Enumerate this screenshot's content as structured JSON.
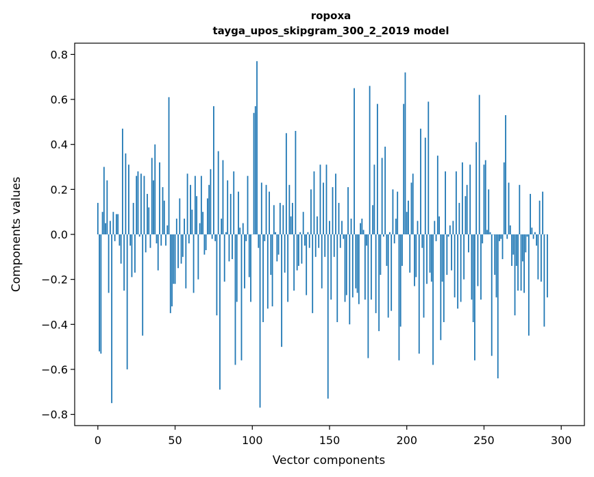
{
  "chart_data": {
    "type": "bar",
    "title": "ropoxa",
    "subtitle": "tayga_upos_skipgram_300_2_2019 model",
    "xlabel": "Vector components",
    "ylabel": "Components values",
    "xlim": [
      -15,
      315
    ],
    "ylim": [
      -0.85,
      0.85
    ],
    "xticks": [
      0,
      50,
      100,
      150,
      200,
      250,
      300
    ],
    "yticks": [
      -0.8,
      -0.6,
      -0.4,
      -0.2,
      0.0,
      0.2,
      0.4,
      0.6,
      0.8
    ],
    "ytick_labels": [
      "−0.8",
      "−0.6",
      "−0.4",
      "−0.2",
      "0.0",
      "0.2",
      "0.4",
      "0.6",
      "0.8"
    ],
    "grid": false,
    "color": "#1f77b4",
    "series": [
      {
        "values": [
          0.14,
          -0.52,
          -0.53,
          0.1,
          0.3,
          0.05,
          0.24,
          -0.26,
          0.06,
          -0.75,
          0.1,
          -0.03,
          0.09,
          0.09,
          -0.05,
          -0.13,
          0.47,
          -0.25,
          0.36,
          -0.6,
          0.31,
          -0.05,
          -0.19,
          0.14,
          -0.17,
          0.26,
          0.28,
          -0.01,
          0.27,
          -0.45,
          0.26,
          -0.08,
          0.18,
          0.12,
          -0.06,
          0.34,
          0.24,
          0.4,
          -0.04,
          -0.16,
          0.32,
          -0.05,
          0.21,
          0.15,
          -0.05,
          0.04,
          0.61,
          -0.35,
          -0.32,
          -0.22,
          -0.22,
          0.07,
          -0.15,
          0.16,
          -0.13,
          -0.1,
          0.07,
          -0.24,
          0.27,
          -0.04,
          0.22,
          0.11,
          -0.26,
          0.26,
          0.17,
          -0.2,
          0.05,
          0.26,
          0.1,
          -0.09,
          -0.07,
          0.16,
          0.22,
          0.29,
          -0.02,
          0.57,
          -0.03,
          -0.36,
          0.37,
          -0.69,
          0.07,
          0.33,
          -0.21,
          0.01,
          0.24,
          -0.12,
          0.18,
          -0.11,
          0.28,
          -0.58,
          -0.3,
          0.19,
          0.03,
          -0.56,
          0.05,
          -0.24,
          -0.03,
          0.26,
          -0.19,
          -0.3,
          0.0,
          0.54,
          0.57,
          0.77,
          -0.06,
          -0.77,
          0.23,
          -0.39,
          -0.03,
          0.22,
          -0.33,
          0.19,
          -0.18,
          -0.32,
          0.13,
          0.01,
          -0.12,
          -0.09,
          0.14,
          -0.5,
          0.13,
          -0.17,
          0.45,
          -0.3,
          0.22,
          0.08,
          0.14,
          -0.25,
          0.46,
          -0.16,
          -0.14,
          0.01,
          -0.13,
          0.1,
          -0.05,
          -0.27,
          0.01,
          -0.06,
          0.2,
          -0.35,
          0.28,
          -0.1,
          0.08,
          -0.06,
          0.31,
          -0.24,
          0.23,
          -0.1,
          0.31,
          -0.73,
          0.06,
          -0.29,
          0.21,
          -0.1,
          0.27,
          -0.39,
          0.14,
          -0.06,
          0.06,
          -0.02,
          -0.3,
          -0.27,
          0.21,
          -0.4,
          0.07,
          -0.28,
          0.65,
          -0.24,
          -0.26,
          -0.31,
          0.05,
          0.07,
          0.02,
          -0.29,
          -0.05,
          -0.55,
          0.66,
          -0.29,
          0.13,
          0.31,
          -0.35,
          0.58,
          -0.43,
          -0.18,
          0.34,
          -0.01,
          0.39,
          -0.14,
          -0.37,
          0.01,
          -0.34,
          0.2,
          -0.04,
          0.07,
          0.19,
          -0.56,
          -0.41,
          -0.14,
          0.58,
          0.72,
          0.1,
          0.15,
          -0.17,
          0.23,
          0.27,
          -0.23,
          -0.19,
          0.06,
          -0.53,
          0.47,
          -0.06,
          -0.37,
          0.43,
          -0.22,
          0.59,
          -0.17,
          -0.21,
          -0.58,
          0.06,
          -0.03,
          0.35,
          0.08,
          -0.47,
          -0.21,
          -0.39,
          0.28,
          -0.18,
          -0.01,
          0.04,
          -0.16,
          0.06,
          -0.28,
          0.28,
          -0.33,
          0.14,
          -0.3,
          0.32,
          -0.2,
          0.17,
          0.22,
          -0.08,
          0.31,
          -0.29,
          -0.39,
          -0.56,
          0.41,
          -0.23,
          0.62,
          -0.29,
          -0.04,
          0.31,
          0.33,
          0.02,
          0.2,
          0.01,
          -0.54,
          0.0,
          -0.18,
          -0.28,
          -0.64,
          -0.03,
          -0.02,
          -0.11,
          0.32,
          0.53,
          -0.02,
          0.23,
          0.04,
          -0.14,
          -0.09,
          -0.36,
          -0.14,
          -0.25,
          0.22,
          -0.25,
          -0.12,
          -0.26,
          -0.08,
          -0.01,
          -0.45,
          0.18,
          0.03,
          -0.02,
          0.01,
          -0.05,
          -0.2,
          0.15,
          -0.21,
          0.19,
          -0.41,
          0.0,
          -0.28
        ]
      }
    ]
  }
}
